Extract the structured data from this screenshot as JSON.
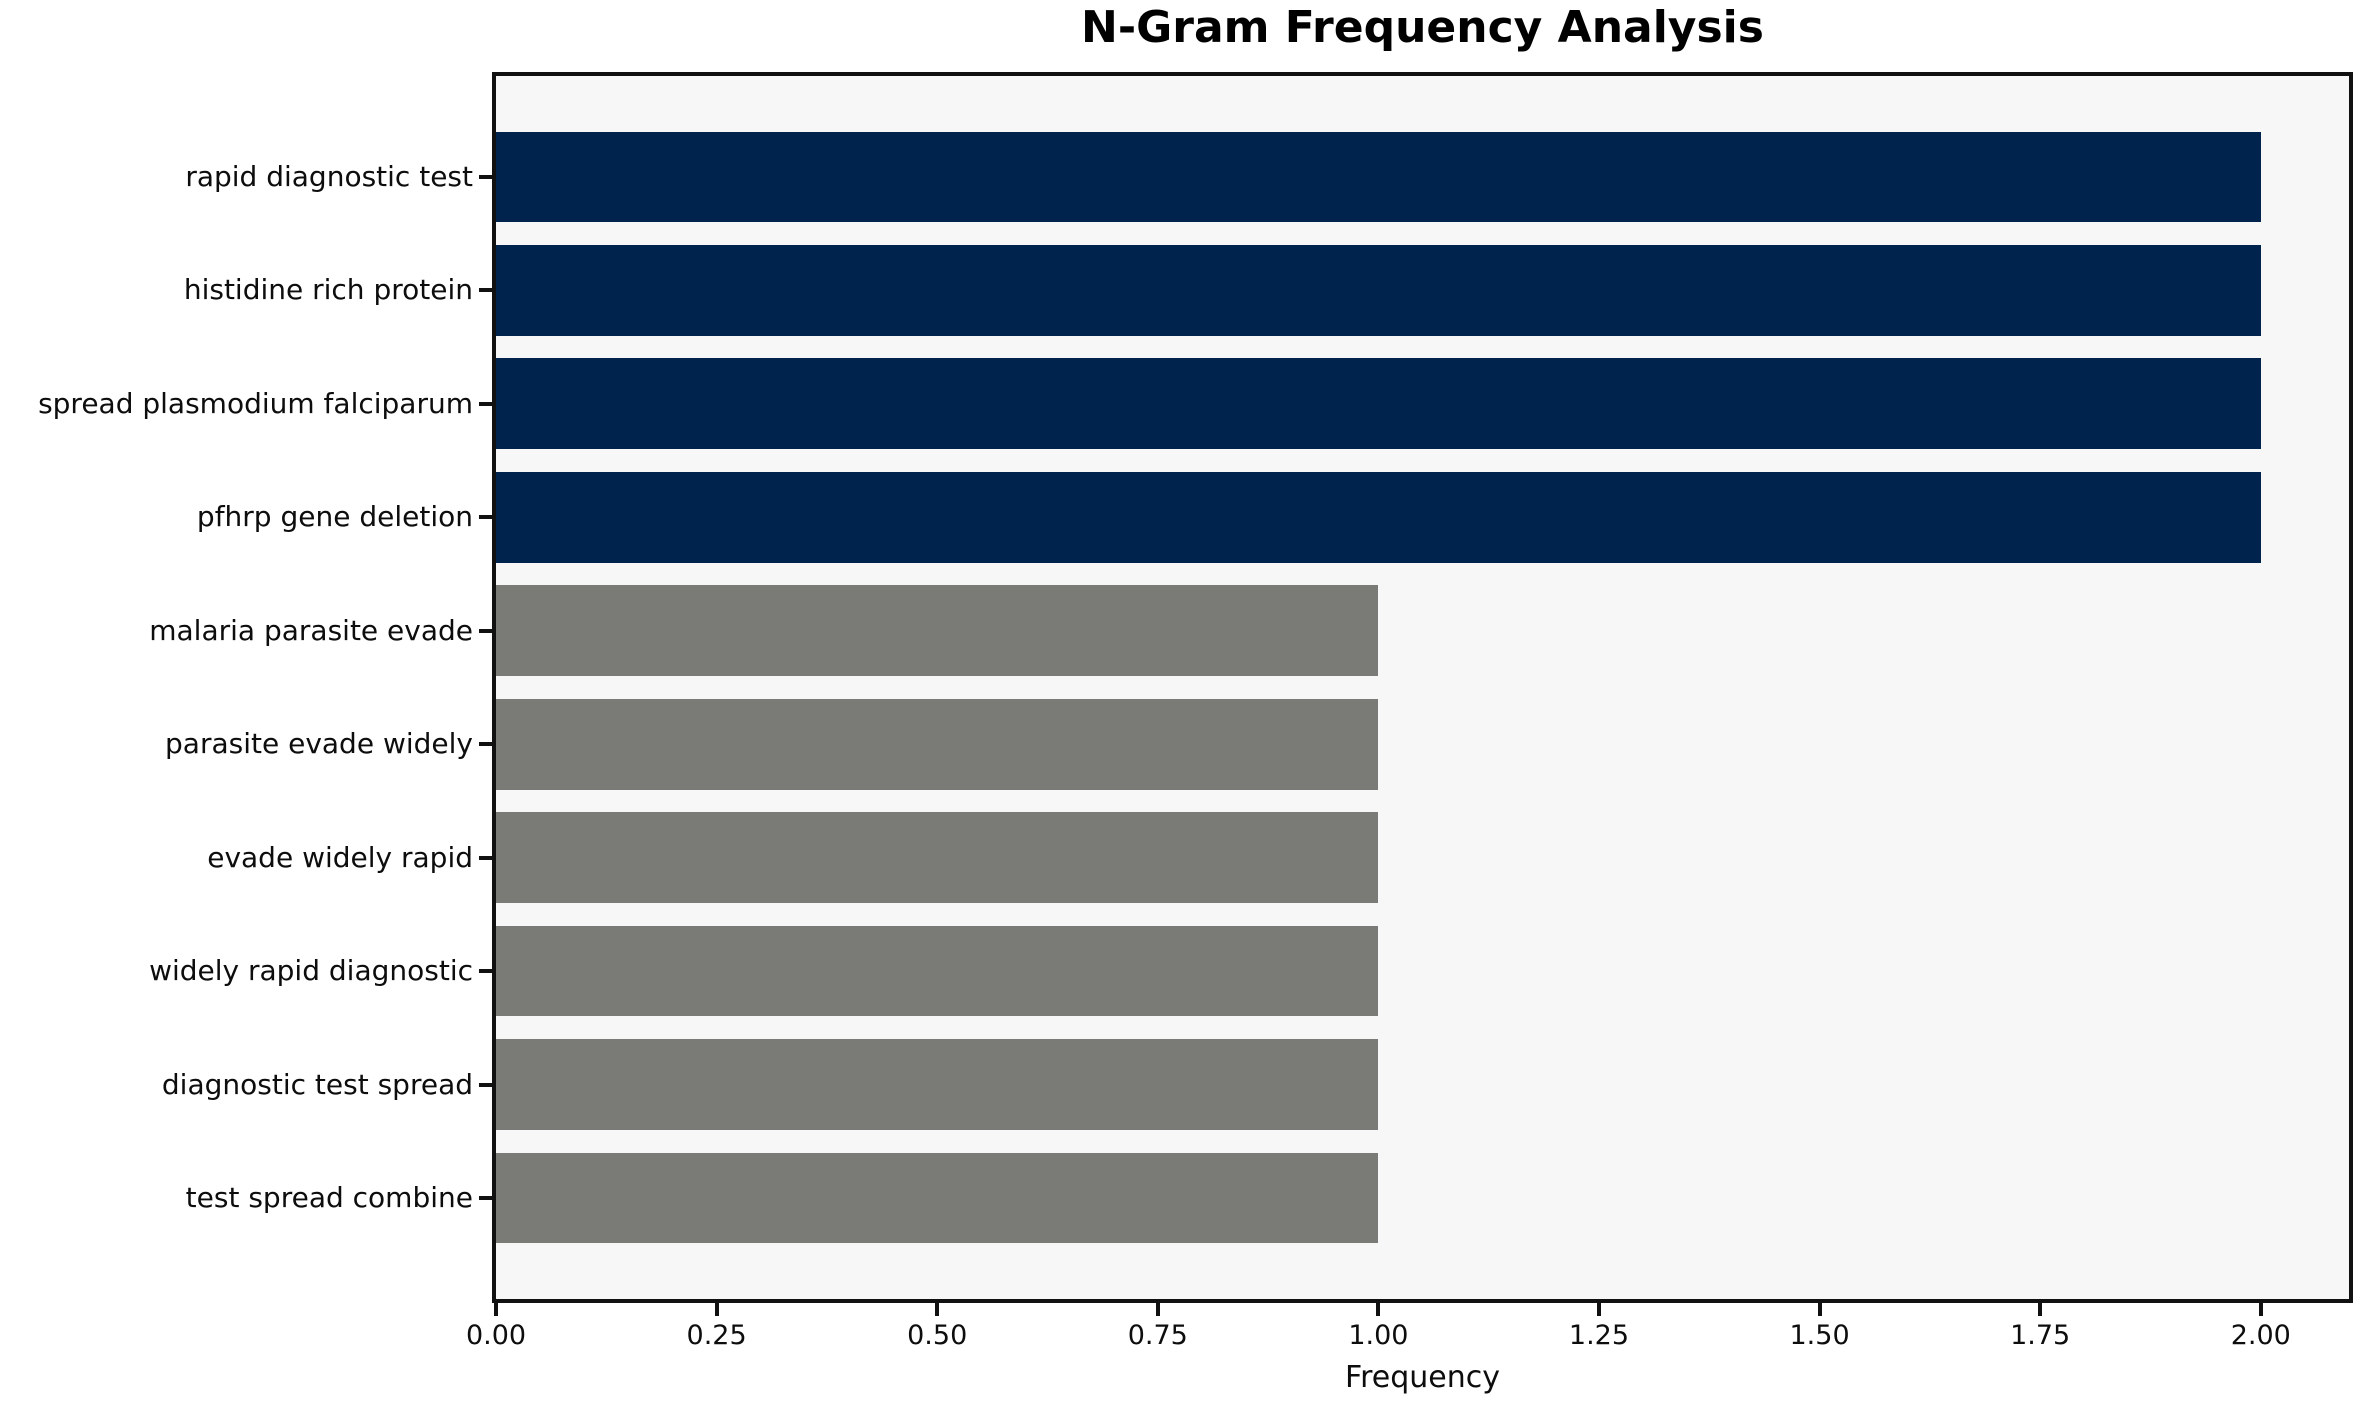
{
  "figure": {
    "background": "#ffffff",
    "plot_background": "#f7f7f8",
    "spine_color": "#111111",
    "text_color": "#0d0d0d"
  },
  "chart_data": {
    "type": "bar",
    "orientation": "horizontal",
    "title": "N-Gram Frequency Analysis",
    "xlabel": "Frequency",
    "ylabel": "",
    "categories": [
      "rapid diagnostic test",
      "histidine rich protein",
      "spread plasmodium falciparum",
      "pfhrp gene deletion",
      "malaria parasite evade",
      "parasite evade widely",
      "evade widely rapid",
      "widely rapid diagnostic",
      "diagnostic test spread",
      "test spread combine"
    ],
    "values": [
      2,
      2,
      2,
      2,
      1,
      1,
      1,
      1,
      1,
      1
    ],
    "bar_colors": [
      "#00234e",
      "#00234e",
      "#00234e",
      "#00234e",
      "#7a7a76",
      "#7a7a76",
      "#7a7a76",
      "#7a7a76",
      "#7a7a76",
      "#7a7a76"
    ],
    "highlight_color": "#00234e",
    "base_color": "#7a7a76",
    "xlim": [
      0,
      2.1
    ],
    "xtick_labels": [
      "0.00",
      "0.25",
      "0.50",
      "0.75",
      "1.00",
      "1.25",
      "1.50",
      "1.75",
      "2.00"
    ],
    "xtick_values": [
      0,
      0.25,
      0.5,
      0.75,
      1.0,
      1.25,
      1.5,
      1.75,
      2.0
    ],
    "grid": false,
    "legend": "none"
  }
}
